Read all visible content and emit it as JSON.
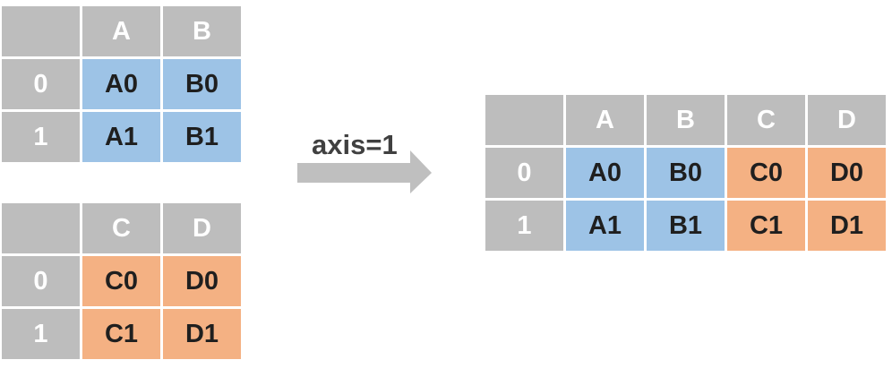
{
  "left_top": {
    "header": [
      "",
      "A",
      "B"
    ],
    "rows": [
      {
        "index": "0",
        "cells": [
          "A0",
          "B0"
        ]
      },
      {
        "index": "1",
        "cells": [
          "A1",
          "B1"
        ]
      }
    ]
  },
  "left_bottom": {
    "header": [
      "",
      "C",
      "D"
    ],
    "rows": [
      {
        "index": "0",
        "cells": [
          "C0",
          "D0"
        ]
      },
      {
        "index": "1",
        "cells": [
          "C1",
          "D1"
        ]
      }
    ]
  },
  "arrow": {
    "label": "axis=1"
  },
  "result": {
    "header": [
      "",
      "A",
      "B",
      "C",
      "D"
    ],
    "rows": [
      {
        "index": "0",
        "cells": [
          "A0",
          "B0",
          "C0",
          "D0"
        ]
      },
      {
        "index": "1",
        "cells": [
          "A1",
          "B1",
          "C1",
          "D1"
        ]
      }
    ]
  },
  "colors": {
    "header_gray": "#bdbdbd",
    "blue": "#9dc3e6",
    "orange": "#f4b183",
    "arrow_gray": "#bfbfbf",
    "label_text": "#404040"
  }
}
